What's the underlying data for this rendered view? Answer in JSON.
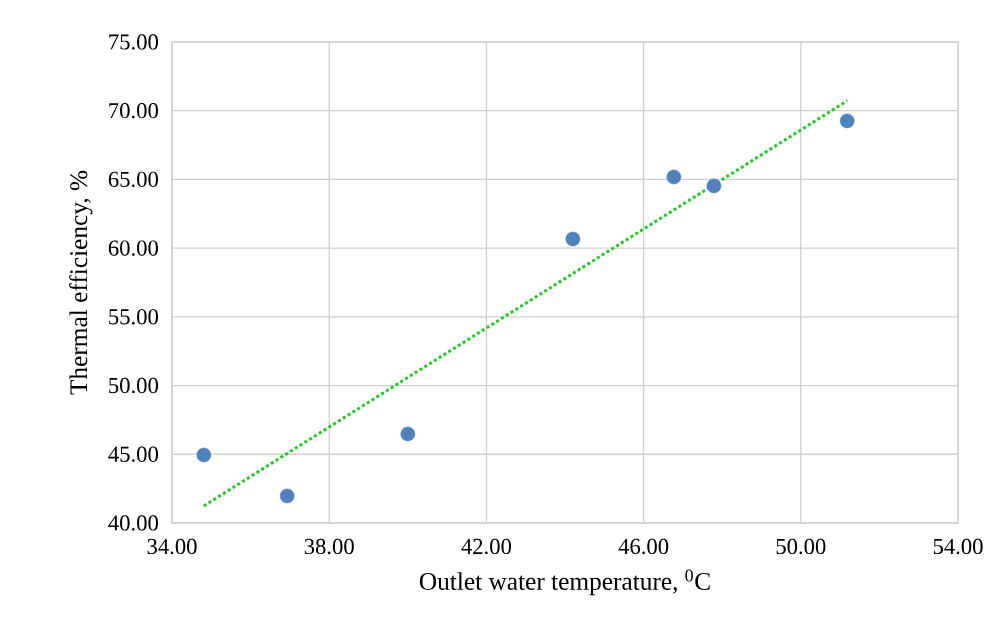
{
  "chart_data": {
    "type": "scatter",
    "xlabel": "Outlet water temperature, $^{0}$C",
    "ylabel": "Thermal efficiency, %",
    "xlim": [
      34,
      54
    ],
    "ylim": [
      40,
      75
    ],
    "xticks": [
      {
        "value": 34,
        "label": "34.00"
      },
      {
        "value": 38,
        "label": "38.00"
      },
      {
        "value": 42,
        "label": "42.00"
      },
      {
        "value": 46,
        "label": "46.00"
      },
      {
        "value": 50,
        "label": "50.00"
      },
      {
        "value": 54,
        "label": "54.00"
      }
    ],
    "yticks": [
      {
        "value": 40,
        "label": "40.00"
      },
      {
        "value": 45,
        "label": "45.00"
      },
      {
        "value": 50,
        "label": "50.00"
      },
      {
        "value": 55,
        "label": "55.00"
      },
      {
        "value": 60,
        "label": "60.00"
      },
      {
        "value": 65,
        "label": "65.00"
      },
      {
        "value": 70,
        "label": "70.00"
      },
      {
        "value": 75,
        "label": "75.00"
      }
    ],
    "grid": true,
    "series": [
      {
        "color": "#4f81bd",
        "marker": "circle",
        "x": [
          34.81,
          36.93,
          40.0,
          44.2,
          46.77,
          47.79,
          51.18
        ],
        "values": [
          44.95,
          41.97,
          46.48,
          60.67,
          65.18,
          64.53,
          69.26
        ]
      },
      {
        "type": "line",
        "color": "#22c822",
        "marker": "none",
        "line_style": "dotted",
        "x": [
          34.81,
          51.18
        ],
        "values": [
          41.24,
          70.72
        ]
      }
    ]
  }
}
